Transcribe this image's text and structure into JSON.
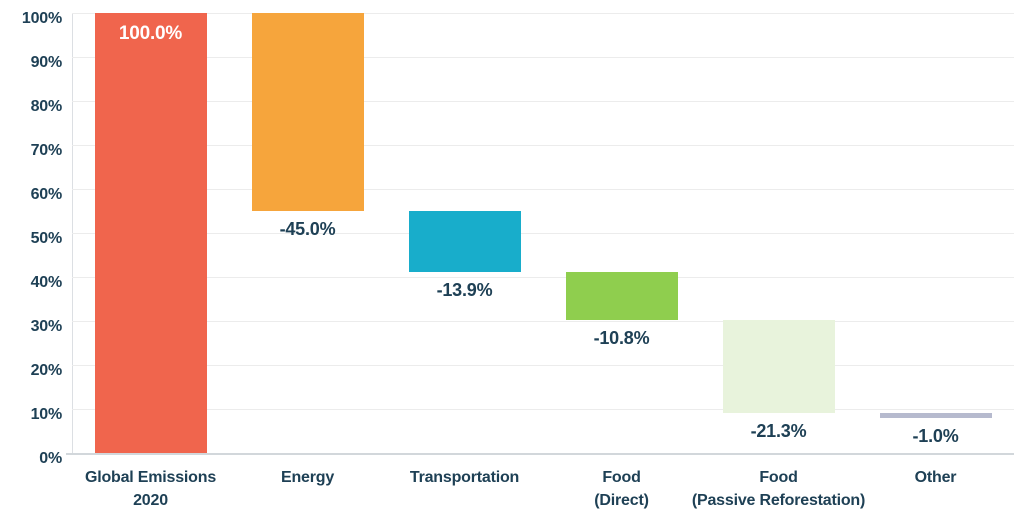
{
  "chart_data": {
    "type": "bar",
    "subtype": "waterfall",
    "categories": [
      "Global Emissions 2020",
      "Energy",
      "Transportation",
      "Food (Direct)",
      "Food (Passive Reforestation)",
      "Other"
    ],
    "bars": [
      {
        "category": "Global Emissions 2020",
        "label_lines": [
          "Global Emissions",
          "2020"
        ],
        "value": 100.0,
        "start": 0.0,
        "end": 100.0,
        "display": "100.0%",
        "color": "#f0654d",
        "label_inside": true,
        "label_color": "#ffffff"
      },
      {
        "category": "Energy",
        "label_lines": [
          "Energy"
        ],
        "value": -45.0,
        "start": 100.0,
        "end": 55.0,
        "display": "-45.0%",
        "color": "#f6a53c",
        "label_inside": false,
        "label_color": "#1e4055"
      },
      {
        "category": "Transportation",
        "label_lines": [
          "Transportation"
        ],
        "value": -13.9,
        "start": 55.0,
        "end": 41.1,
        "display": "-13.9%",
        "color": "#18adcb",
        "label_inside": false,
        "label_color": "#1e4055"
      },
      {
        "category": "Food (Direct)",
        "label_lines": [
          "Food",
          "(Direct)"
        ],
        "value": -10.8,
        "start": 41.1,
        "end": 30.3,
        "display": "-10.8%",
        "color": "#8fce4e",
        "label_inside": false,
        "label_color": "#1e4055"
      },
      {
        "category": "Food (Passive Reforestation)",
        "label_lines": [
          "Food",
          "(Passive Reforestation)"
        ],
        "value": -21.3,
        "start": 30.3,
        "end": 9.0,
        "display": "-21.3%",
        "color": "#e8f3dc",
        "label_inside": false,
        "label_color": "#1e4055"
      },
      {
        "category": "Other",
        "label_lines": [
          "Other"
        ],
        "value": -1.0,
        "start": 9.0,
        "end": 8.0,
        "display": "-1.0%",
        "color": "#b6bace",
        "label_inside": false,
        "label_color": "#1e4055"
      }
    ],
    "y_axis": {
      "ticks": [
        100,
        90,
        80,
        70,
        60,
        50,
        40,
        30,
        20,
        10,
        0
      ],
      "tick_labels": [
        "100%",
        "90%",
        "80%",
        "70%",
        "60%",
        "50%",
        "40%",
        "30%",
        "20%",
        "10%",
        "0%"
      ]
    },
    "ylim": [
      0,
      100
    ],
    "grid": true,
    "legend": false,
    "colors": {
      "text": "#1e4055",
      "gridline": "#ececec",
      "axis_line": "#d2d7db"
    }
  }
}
